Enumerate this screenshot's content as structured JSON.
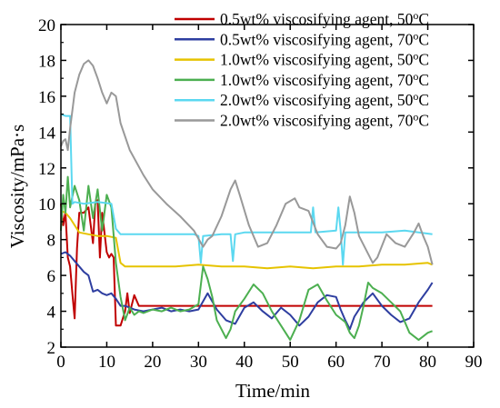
{
  "chart_data": {
    "type": "line",
    "title": "",
    "xlabel": "Time/min",
    "ylabel": "Viscosity/mPa·s",
    "xlim": [
      0,
      90
    ],
    "ylim": [
      2,
      20
    ],
    "xticks": [
      0,
      10,
      20,
      30,
      40,
      50,
      60,
      70,
      80,
      90
    ],
    "yticks": [
      2,
      4,
      6,
      8,
      10,
      12,
      14,
      16,
      18,
      20
    ],
    "grid": false,
    "legend_position": "top-right",
    "series": [
      {
        "name": "0.5wt% viscosifying agent, 50",
        "color": "#c00000",
        "points": [
          [
            0,
            10
          ],
          [
            0.5,
            8.8
          ],
          [
            1,
            9.5
          ],
          [
            1.5,
            7
          ],
          [
            2,
            6.5
          ],
          [
            2.5,
            5
          ],
          [
            3,
            3.6
          ],
          [
            3.5,
            7.5
          ],
          [
            4,
            9.5
          ],
          [
            5,
            9.5
          ],
          [
            6,
            9.8
          ],
          [
            7,
            7.8
          ],
          [
            7.5,
            10
          ],
          [
            8,
            10.2
          ],
          [
            8.5,
            7
          ],
          [
            9,
            9.5
          ],
          [
            10,
            7.3
          ],
          [
            10.5,
            7
          ],
          [
            11,
            7.2
          ],
          [
            11.5,
            7
          ],
          [
            12,
            3.2
          ],
          [
            13,
            3.2
          ],
          [
            14,
            4
          ],
          [
            14.5,
            5
          ],
          [
            15,
            3.9
          ],
          [
            16,
            4.9
          ],
          [
            17,
            4.3
          ],
          [
            20,
            4.3
          ],
          [
            25,
            4.3
          ],
          [
            30,
            4.3
          ],
          [
            40,
            4.3
          ],
          [
            50,
            4.3
          ],
          [
            60,
            4.3
          ],
          [
            70,
            4.3
          ],
          [
            81,
            4.3
          ]
        ]
      },
      {
        "name": "0.5wt% viscosifying agent, 70",
        "color": "#2e3ea0",
        "points": [
          [
            0,
            7.2
          ],
          [
            1,
            7.3
          ],
          [
            2,
            7.1
          ],
          [
            3,
            6.8
          ],
          [
            4,
            6.5
          ],
          [
            5,
            6.2
          ],
          [
            6,
            6
          ],
          [
            7,
            5.1
          ],
          [
            8,
            5.2
          ],
          [
            9,
            5
          ],
          [
            10,
            4.9
          ],
          [
            11,
            5
          ],
          [
            12,
            4.7
          ],
          [
            13,
            4.3
          ],
          [
            14,
            4.3
          ],
          [
            16,
            4.1
          ],
          [
            18,
            4
          ],
          [
            20,
            4.1
          ],
          [
            22,
            4.2
          ],
          [
            24,
            4
          ],
          [
            26,
            4.1
          ],
          [
            28,
            4
          ],
          [
            30,
            4.1
          ],
          [
            32,
            5
          ],
          [
            34,
            4.1
          ],
          [
            36,
            3.5
          ],
          [
            38,
            3.3
          ],
          [
            40,
            4.2
          ],
          [
            42,
            4.5
          ],
          [
            44,
            4
          ],
          [
            46,
            3.6
          ],
          [
            48,
            4.2
          ],
          [
            50,
            3.8
          ],
          [
            52,
            3.2
          ],
          [
            54,
            3.7
          ],
          [
            56,
            4.5
          ],
          [
            58,
            4.9
          ],
          [
            60,
            4.8
          ],
          [
            61,
            4.1
          ],
          [
            62,
            3.5
          ],
          [
            63,
            3
          ],
          [
            64,
            3.7
          ],
          [
            66,
            4.5
          ],
          [
            68,
            5
          ],
          [
            70,
            4.3
          ],
          [
            72,
            3.8
          ],
          [
            74,
            3.4
          ],
          [
            76,
            3.6
          ],
          [
            78,
            4.5
          ],
          [
            80,
            5.2
          ],
          [
            81,
            5.6
          ]
        ]
      },
      {
        "name": "1.0wt% viscosifying agent, 50",
        "color": "#e6c300",
        "points": [
          [
            0,
            9.6
          ],
          [
            1,
            9.5
          ],
          [
            2,
            9.2
          ],
          [
            3,
            8.8
          ],
          [
            4,
            8.4
          ],
          [
            6,
            8.3
          ],
          [
            8,
            8.2
          ],
          [
            10,
            8.2
          ],
          [
            12,
            8.1
          ],
          [
            13,
            6.7
          ],
          [
            14,
            6.5
          ],
          [
            18,
            6.5
          ],
          [
            25,
            6.5
          ],
          [
            30,
            6.6
          ],
          [
            35,
            6.5
          ],
          [
            40,
            6.5
          ],
          [
            45,
            6.4
          ],
          [
            50,
            6.5
          ],
          [
            55,
            6.4
          ],
          [
            60,
            6.5
          ],
          [
            65,
            6.5
          ],
          [
            70,
            6.6
          ],
          [
            75,
            6.6
          ],
          [
            80,
            6.7
          ],
          [
            81,
            6.6
          ]
        ]
      },
      {
        "name": "1.0wt% viscosifying agent, 70",
        "color": "#4caf50",
        "points": [
          [
            0,
            8.5
          ],
          [
            0.5,
            10.5
          ],
          [
            1,
            9.5
          ],
          [
            1.5,
            11.5
          ],
          [
            2,
            9.8
          ],
          [
            3,
            11
          ],
          [
            4,
            10.2
          ],
          [
            5,
            8.5
          ],
          [
            6,
            11
          ],
          [
            7,
            9.2
          ],
          [
            8,
            10.8
          ],
          [
            9,
            8.5
          ],
          [
            10,
            10.5
          ],
          [
            11,
            9.8
          ],
          [
            12,
            6.7
          ],
          [
            13,
            4.8
          ],
          [
            14,
            3.5
          ],
          [
            15,
            4.2
          ],
          [
            16,
            3.8
          ],
          [
            17,
            4
          ],
          [
            18,
            3.9
          ],
          [
            20,
            4.1
          ],
          [
            22,
            4
          ],
          [
            24,
            4.2
          ],
          [
            26,
            4
          ],
          [
            28,
            4.1
          ],
          [
            30,
            4.4
          ],
          [
            31,
            6.5
          ],
          [
            32,
            5.8
          ],
          [
            33,
            4.8
          ],
          [
            34,
            3.5
          ],
          [
            35,
            3
          ],
          [
            36,
            2.5
          ],
          [
            37,
            3
          ],
          [
            38,
            4
          ],
          [
            40,
            4.7
          ],
          [
            42,
            5.5
          ],
          [
            44,
            5
          ],
          [
            46,
            4
          ],
          [
            48,
            3.2
          ],
          [
            50,
            2.4
          ],
          [
            52,
            3.5
          ],
          [
            54,
            5.2
          ],
          [
            56,
            5.5
          ],
          [
            58,
            4.6
          ],
          [
            60,
            3.8
          ],
          [
            62,
            3.4
          ],
          [
            63,
            2.8
          ],
          [
            64,
            2.5
          ],
          [
            65,
            3.2
          ],
          [
            66,
            4.3
          ],
          [
            67,
            5.6
          ],
          [
            68,
            5.3
          ],
          [
            70,
            5
          ],
          [
            72,
            4.5
          ],
          [
            74,
            4
          ],
          [
            76,
            2.8
          ],
          [
            78,
            2.4
          ],
          [
            80,
            2.8
          ],
          [
            81,
            2.9
          ]
        ]
      },
      {
        "name": "2.0wt% viscosifying agent, 50",
        "color": "#5bd8f0",
        "points": [
          [
            0,
            15
          ],
          [
            1,
            14.9
          ],
          [
            2,
            14.9
          ],
          [
            2.5,
            10
          ],
          [
            3,
            10.1
          ],
          [
            5,
            10
          ],
          [
            8,
            10.1
          ],
          [
            11,
            10
          ],
          [
            12,
            8.6
          ],
          [
            13,
            8.3
          ],
          [
            15,
            8.3
          ],
          [
            20,
            8.3
          ],
          [
            25,
            8.3
          ],
          [
            29,
            8.3
          ],
          [
            30,
            8.2
          ],
          [
            30.5,
            6.7
          ],
          [
            31,
            8.2
          ],
          [
            35,
            8.3
          ],
          [
            37,
            8.3
          ],
          [
            37.5,
            6.8
          ],
          [
            38,
            8.3
          ],
          [
            40,
            8.4
          ],
          [
            45,
            8.4
          ],
          [
            50,
            8.4
          ],
          [
            54.5,
            8.4
          ],
          [
            55,
            9.8
          ],
          [
            55.5,
            8.4
          ],
          [
            60,
            8.5
          ],
          [
            60.5,
            9.8
          ],
          [
            61,
            8.5
          ],
          [
            61.5,
            6.6
          ],
          [
            62,
            8.4
          ],
          [
            65,
            8.4
          ],
          [
            70,
            8.4
          ],
          [
            75,
            8.5
          ],
          [
            78,
            8.4
          ],
          [
            81,
            8.3
          ]
        ]
      },
      {
        "name": "2.0wt% viscosifying agent, 70",
        "color": "#999999",
        "points": [
          [
            0,
            13.2
          ],
          [
            0.5,
            13.5
          ],
          [
            1,
            13.6
          ],
          [
            1.5,
            13
          ],
          [
            2,
            14.2
          ],
          [
            2.5,
            15.2
          ],
          [
            3,
            16.2
          ],
          [
            4,
            17.2
          ],
          [
            5,
            17.8
          ],
          [
            6,
            18
          ],
          [
            7,
            17.7
          ],
          [
            8,
            17
          ],
          [
            9,
            16.2
          ],
          [
            10,
            15.6
          ],
          [
            11,
            16.2
          ],
          [
            12,
            16
          ],
          [
            13,
            14.5
          ],
          [
            15,
            13
          ],
          [
            18,
            11.6
          ],
          [
            20,
            10.8
          ],
          [
            23,
            10
          ],
          [
            26,
            9.3
          ],
          [
            29,
            8.5
          ],
          [
            31,
            7.6
          ],
          [
            32,
            8
          ],
          [
            33,
            8.2
          ],
          [
            35,
            9.3
          ],
          [
            37,
            10.8
          ],
          [
            38,
            11.3
          ],
          [
            39,
            10.5
          ],
          [
            41,
            8.8
          ],
          [
            43,
            7.6
          ],
          [
            45,
            7.8
          ],
          [
            47,
            8.8
          ],
          [
            49,
            10
          ],
          [
            51,
            10.3
          ],
          [
            52,
            9.8
          ],
          [
            54,
            9.6
          ],
          [
            56,
            8.3
          ],
          [
            58,
            7.6
          ],
          [
            60,
            7.5
          ],
          [
            61,
            7.8
          ],
          [
            62,
            8.8
          ],
          [
            63,
            10.4
          ],
          [
            64,
            9.5
          ],
          [
            65,
            8.2
          ],
          [
            67,
            7.2
          ],
          [
            68,
            6.7
          ],
          [
            69,
            7
          ],
          [
            71,
            8.3
          ],
          [
            73,
            7.8
          ],
          [
            75,
            7.6
          ],
          [
            77,
            8.4
          ],
          [
            78,
            8.9
          ],
          [
            79,
            8.2
          ],
          [
            80,
            7.6
          ],
          [
            81,
            6.6
          ]
        ]
      }
    ]
  }
}
